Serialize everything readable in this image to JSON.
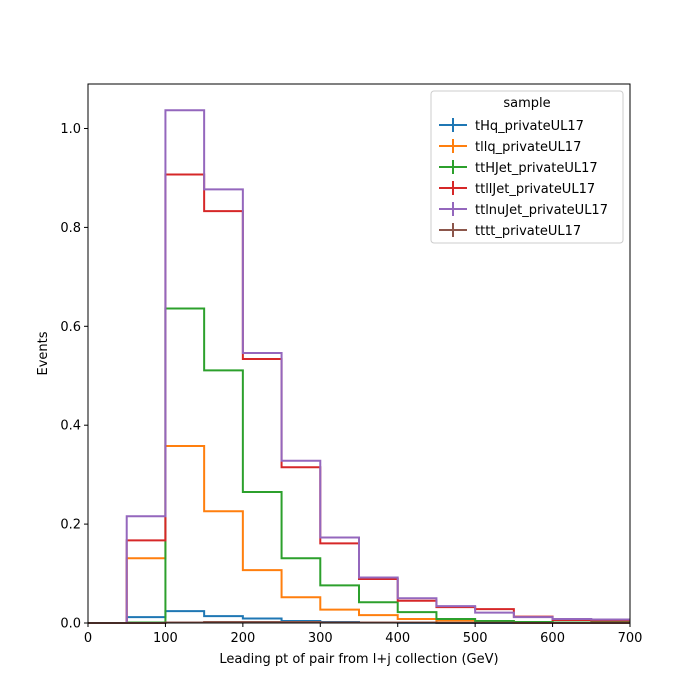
{
  "chart_data": {
    "type": "step-histogram",
    "xlabel": "Leading pt of pair from l+j collection (GeV)",
    "ylabel": "Events",
    "xlim": [
      0,
      700
    ],
    "ylim": [
      0,
      1.09
    ],
    "xticks": [
      0,
      100,
      200,
      300,
      400,
      500,
      600,
      700
    ],
    "yticks": [
      0.0,
      0.2,
      0.4,
      0.6,
      0.8,
      1.0
    ],
    "ytick_labels": [
      "0.0",
      "0.2",
      "0.4",
      "0.6",
      "0.8",
      "1.0"
    ],
    "bin_edges": [
      0,
      50,
      100,
      150,
      200,
      250,
      300,
      350,
      400,
      450,
      500,
      550,
      600,
      650,
      700
    ],
    "legend": {
      "title": "sample",
      "position": "top-right"
    },
    "grid": false,
    "series": [
      {
        "name": "tHq_privateUL17",
        "color": "#1f77b4",
        "values": [
          0,
          0.012,
          0.024,
          0.014,
          0.009,
          0.004,
          0.002,
          0.001,
          0.0005,
          0,
          0,
          0,
          0,
          0
        ]
      },
      {
        "name": "tllq_privateUL17",
        "color": "#ff7f0e",
        "values": [
          0,
          0.131,
          0.358,
          0.226,
          0.107,
          0.052,
          0.027,
          0.016,
          0.008,
          0.005,
          0.003,
          0.002,
          0.001,
          0.001
        ]
      },
      {
        "name": "ttHJet_privateUL17",
        "color": "#2ca02c",
        "values": [
          0,
          0.001,
          0.636,
          0.511,
          0.265,
          0.131,
          0.076,
          0.042,
          0.022,
          0.008,
          0.004,
          0.002,
          0.001,
          0.001
        ]
      },
      {
        "name": "ttllJet_privateUL17",
        "color": "#d62728",
        "values": [
          0,
          0.167,
          0.907,
          0.833,
          0.534,
          0.315,
          0.161,
          0.089,
          0.045,
          0.032,
          0.028,
          0.013,
          0.006,
          0.005
        ]
      },
      {
        "name": "ttlnuJet_privateUL17",
        "color": "#9467bd",
        "values": [
          0,
          0.216,
          1.037,
          0.877,
          0.546,
          0.328,
          0.173,
          0.092,
          0.05,
          0.034,
          0.021,
          0.012,
          0.008,
          0.007
        ]
      },
      {
        "name": "tttt_privateUL17",
        "color": "#8c564b",
        "values": [
          0,
          0,
          0.001,
          0.002,
          0.002,
          0.002,
          0.001,
          0.001,
          0.001,
          0.0005,
          0.0005,
          0,
          0,
          0
        ]
      }
    ]
  }
}
